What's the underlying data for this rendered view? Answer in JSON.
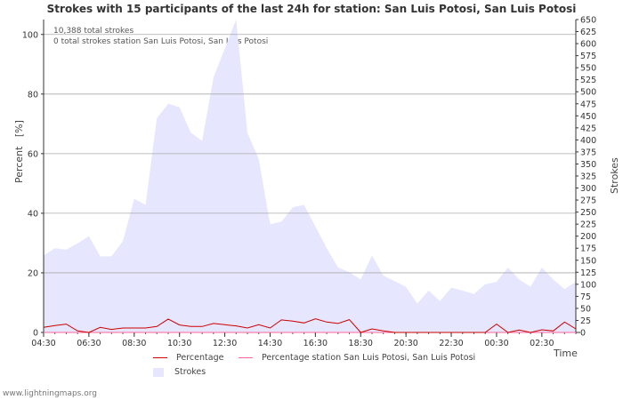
{
  "chart_data": {
    "type": "area",
    "title": "Strokes with 15 participants of the last 24h for station: San Luis Potosi, San Luis Potosi",
    "annotations": [
      "10,388 total strokes",
      "0 total strokes station San Luis Potosi, San Luis Potosi"
    ],
    "xlabel": "Time",
    "ylabel_left": "Percent   [%]",
    "ylabel_right": "Strokes",
    "ylim_left": [
      0,
      105
    ],
    "ylim_right": [
      0,
      650
    ],
    "y_ticks_left": [
      "0",
      "20",
      "40",
      "60",
      "80",
      "100"
    ],
    "y_ticks_right": [
      "0",
      "25",
      "50",
      "75",
      "100",
      "125",
      "150",
      "175",
      "200",
      "225",
      "250",
      "275",
      "300",
      "325",
      "350",
      "375",
      "400",
      "425",
      "450",
      "475",
      "500",
      "525",
      "550",
      "575",
      "600",
      "625",
      "650"
    ],
    "x_ticks": [
      "04:30",
      "06:30",
      "08:30",
      "10:30",
      "12:30",
      "14:30",
      "16:30",
      "18:30",
      "20:30",
      "22:30",
      "00:30",
      "02:30"
    ],
    "x_start": "04:30",
    "interval_minutes": 30,
    "series": [
      {
        "name": "Strokes",
        "axis": "right",
        "color": "#e6e6ff",
        "values": [
          160,
          175,
          172,
          185,
          200,
          158,
          158,
          190,
          278,
          265,
          445,
          475,
          468,
          415,
          398,
          530,
          590,
          650,
          415,
          360,
          225,
          230,
          260,
          265,
          220,
          175,
          135,
          125,
          110,
          160,
          118,
          107,
          95,
          60,
          87,
          65,
          93,
          87,
          80,
          100,
          105,
          135,
          110,
          95,
          135,
          110,
          90,
          105
        ]
      },
      {
        "name": "Percentage",
        "axis": "left",
        "color": "#cc0000",
        "values": [
          1.7,
          2.3,
          2.8,
          0.5,
          0,
          1.7,
          1.0,
          1.5,
          1.5,
          1.5,
          2.0,
          4.5,
          2.5,
          2.0,
          2.0,
          3.0,
          2.6,
          2.2,
          1.5,
          2.6,
          1.5,
          4.2,
          3.8,
          3.2,
          4.6,
          3.5,
          3.0,
          4.3,
          0,
          1.2,
          0.5,
          0,
          0,
          0,
          0,
          0,
          0,
          0,
          0,
          0,
          2.8,
          0,
          0.8,
          0,
          0.9,
          0.5,
          3.5,
          1.2
        ]
      },
      {
        "name": "Percentage station San Luis Potosi, San Luis Potosi",
        "axis": "left",
        "color": "#ff6699",
        "values": [
          0,
          0,
          0,
          0,
          0,
          0,
          0,
          0,
          0,
          0,
          0,
          0,
          0,
          0,
          0,
          0,
          0,
          0,
          0,
          0,
          0,
          0,
          0,
          0,
          0,
          0,
          0,
          0,
          0,
          0,
          0,
          0,
          0,
          0,
          0,
          0,
          0,
          0,
          0,
          0,
          0,
          0,
          0,
          0,
          0,
          0,
          0,
          0
        ]
      }
    ],
    "legend": [
      "Percentage",
      "Percentage station San Luis Potosi, San Luis Potosi",
      "Strokes"
    ]
  },
  "credit": "www.lightningmaps.org"
}
